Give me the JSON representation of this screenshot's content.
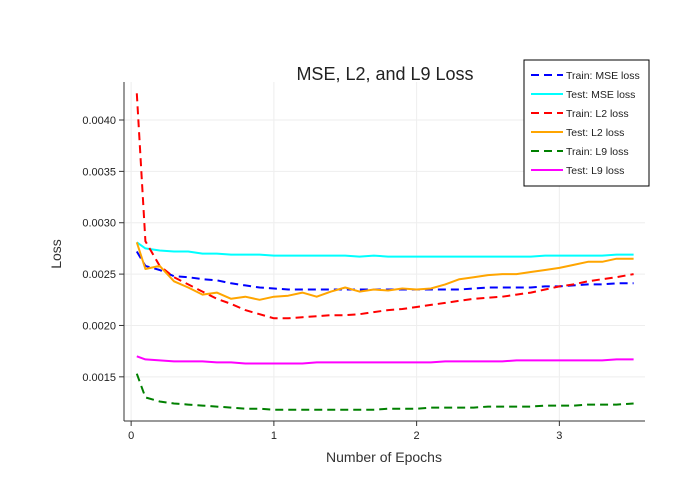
{
  "chart_data": {
    "type": "line",
    "title": "MSE, L2, and L9 Loss",
    "xlabel": "Number of Epochs",
    "ylabel": "Loss",
    "xlim": [
      -0.05,
      3.6
    ],
    "ylim": [
      0.00107,
      0.00437
    ],
    "xticks": [
      0,
      1,
      2,
      3
    ],
    "xtick_labels": [
      "0",
      "1",
      "2",
      "3"
    ],
    "yticks": [
      0.0015,
      0.002,
      0.0025,
      0.003,
      0.0035,
      0.004
    ],
    "ytick_labels": [
      "0.0015",
      "0.0020",
      "0.0025",
      "0.0030",
      "0.0035",
      "0.0040"
    ],
    "grid": true,
    "legend_position": "top-right",
    "x": [
      0.04,
      0.1,
      0.2,
      0.3,
      0.4,
      0.5,
      0.6,
      0.7,
      0.8,
      0.9,
      1.0,
      1.1,
      1.2,
      1.3,
      1.4,
      1.5,
      1.6,
      1.7,
      1.8,
      1.9,
      2.0,
      2.1,
      2.2,
      2.3,
      2.4,
      2.5,
      2.6,
      2.7,
      2.8,
      2.9,
      3.0,
      3.1,
      3.2,
      3.3,
      3.4,
      3.52
    ],
    "series": [
      {
        "name": "Train: MSE loss",
        "color": "#0000ff",
        "dash": "dashed",
        "values": [
          0.00272,
          0.00258,
          0.00254,
          0.00248,
          0.00247,
          0.00245,
          0.00244,
          0.00241,
          0.00239,
          0.00237,
          0.00236,
          0.00235,
          0.00235,
          0.00235,
          0.00235,
          0.00235,
          0.00235,
          0.00235,
          0.00235,
          0.00235,
          0.00235,
          0.00235,
          0.00235,
          0.00235,
          0.00236,
          0.00237,
          0.00237,
          0.00237,
          0.00237,
          0.00238,
          0.00238,
          0.00239,
          0.0024,
          0.0024,
          0.00241,
          0.00241
        ]
      },
      {
        "name": "Test: MSE loss",
        "color": "#00ffff",
        "dash": "solid",
        "values": [
          0.00281,
          0.00275,
          0.00273,
          0.00272,
          0.00272,
          0.0027,
          0.0027,
          0.00269,
          0.00269,
          0.00269,
          0.00268,
          0.00268,
          0.00268,
          0.00268,
          0.00268,
          0.00268,
          0.00267,
          0.00268,
          0.00267,
          0.00267,
          0.00267,
          0.00267,
          0.00267,
          0.00267,
          0.00267,
          0.00267,
          0.00267,
          0.00267,
          0.00267,
          0.00268,
          0.00268,
          0.00268,
          0.00268,
          0.00268,
          0.00269,
          0.00269
        ]
      },
      {
        "name": "Train: L2 loss",
        "color": "#ff0000",
        "dash": "dashed",
        "values": [
          0.00426,
          0.00282,
          0.00258,
          0.00247,
          0.0024,
          0.00233,
          0.00226,
          0.00221,
          0.00215,
          0.00211,
          0.00207,
          0.00207,
          0.00208,
          0.00209,
          0.0021,
          0.0021,
          0.00211,
          0.00213,
          0.00215,
          0.00216,
          0.00218,
          0.0022,
          0.00222,
          0.00224,
          0.00226,
          0.00227,
          0.00228,
          0.0023,
          0.00232,
          0.00235,
          0.00238,
          0.0024,
          0.00243,
          0.00245,
          0.00247,
          0.0025
        ]
      },
      {
        "name": "Test: L2 loss",
        "color": "#ffa500",
        "dash": "solid",
        "values": [
          0.00281,
          0.00255,
          0.00258,
          0.00243,
          0.00237,
          0.0023,
          0.00232,
          0.00226,
          0.00228,
          0.00225,
          0.00228,
          0.00229,
          0.00232,
          0.00228,
          0.00233,
          0.00237,
          0.00233,
          0.00235,
          0.00234,
          0.00236,
          0.00235,
          0.00236,
          0.0024,
          0.00245,
          0.00247,
          0.00249,
          0.0025,
          0.0025,
          0.00252,
          0.00254,
          0.00256,
          0.00259,
          0.00262,
          0.00262,
          0.00265,
          0.00265
        ]
      },
      {
        "name": "Train: L9 loss",
        "color": "#008000",
        "dash": "dashed",
        "values": [
          0.00153,
          0.0013,
          0.00126,
          0.00124,
          0.00123,
          0.00122,
          0.00121,
          0.0012,
          0.00119,
          0.00119,
          0.00118,
          0.00118,
          0.00118,
          0.00118,
          0.00118,
          0.00118,
          0.00118,
          0.00118,
          0.00119,
          0.00119,
          0.00119,
          0.0012,
          0.0012,
          0.0012,
          0.0012,
          0.00121,
          0.00121,
          0.00121,
          0.00121,
          0.00122,
          0.00122,
          0.00122,
          0.00123,
          0.00123,
          0.00123,
          0.00124
        ]
      },
      {
        "name": "Test: L9 loss",
        "color": "#ff00ff",
        "dash": "solid",
        "values": [
          0.0017,
          0.00167,
          0.00166,
          0.00165,
          0.00165,
          0.00165,
          0.00164,
          0.00164,
          0.00163,
          0.00163,
          0.00163,
          0.00163,
          0.00163,
          0.00164,
          0.00164,
          0.00164,
          0.00164,
          0.00164,
          0.00164,
          0.00164,
          0.00164,
          0.00164,
          0.00165,
          0.00165,
          0.00165,
          0.00165,
          0.00165,
          0.00166,
          0.00166,
          0.00166,
          0.00166,
          0.00166,
          0.00166,
          0.00166,
          0.00167,
          0.00167
        ]
      }
    ]
  }
}
